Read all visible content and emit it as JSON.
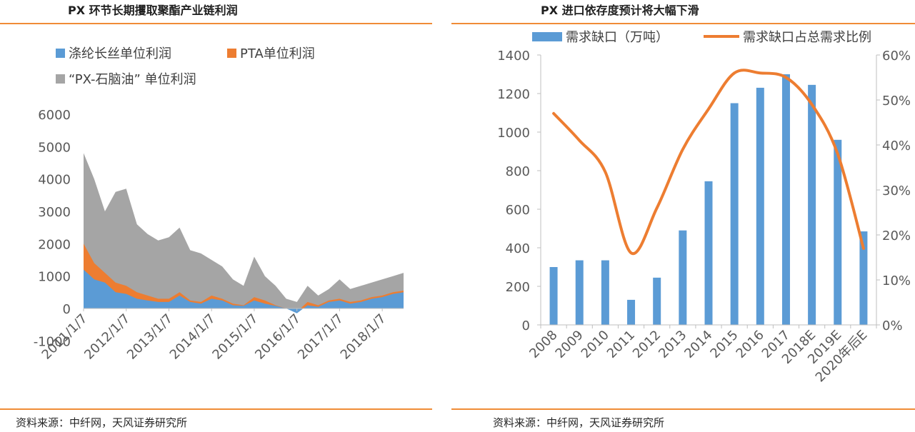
{
  "colors": {
    "blue": "#5b9bd5",
    "orange": "#ed7d31",
    "gray": "#a5a5a5",
    "rule": "#f08c37"
  },
  "left": {
    "title": "PX 环节长期攫取聚酯产业链利润",
    "source": "资料来源：中纤网，天风证券研究所",
    "chart_data": {
      "type": "area",
      "series": [
        {
          "name": "涤纶长丝单位利润",
          "color": "#5b9bd5"
        },
        {
          "name": "PTA单位利润",
          "color": "#ed7d31"
        },
        {
          "name": "“PX-石脑油” 单位利润",
          "color": "#a5a5a5"
        }
      ],
      "x": [
        "2011/1/7",
        "2011/4/7",
        "2011/7/7",
        "2011/10/7",
        "2012/1/7",
        "2012/4/7",
        "2012/7/7",
        "2012/10/7",
        "2013/1/7",
        "2013/4/7",
        "2013/7/7",
        "2013/10/7",
        "2014/1/7",
        "2014/4/7",
        "2014/7/7",
        "2014/10/7",
        "2015/1/7",
        "2015/4/7",
        "2015/7/7",
        "2015/10/7",
        "2016/1/7",
        "2016/4/7",
        "2016/7/7",
        "2016/10/7",
        "2017/1/7",
        "2017/4/7",
        "2017/7/7",
        "2017/10/7",
        "2018/1/7",
        "2018/4/7",
        "2018/7/7"
      ],
      "gray_values": [
        4800,
        4000,
        3000,
        3600,
        3700,
        2600,
        2300,
        2100,
        2200,
        2500,
        1800,
        1700,
        1500,
        1300,
        900,
        700,
        1600,
        1000,
        700,
        300,
        200,
        700,
        400,
        600,
        900,
        600,
        700,
        800,
        900,
        1000,
        1100
      ],
      "orange_values": [
        2000,
        1400,
        1100,
        800,
        700,
        500,
        400,
        300,
        300,
        500,
        250,
        200,
        400,
        300,
        150,
        100,
        350,
        250,
        100,
        0,
        -100,
        200,
        100,
        250,
        300,
        200,
        250,
        350,
        400,
        500,
        550
      ],
      "blue_values": [
        1200,
        900,
        800,
        500,
        450,
        300,
        250,
        200,
        200,
        400,
        200,
        150,
        300,
        250,
        100,
        80,
        250,
        150,
        80,
        0,
        -150,
        100,
        50,
        200,
        250,
        150,
        200,
        300,
        350,
        450,
        500
      ],
      "x_tick_labels": [
        "2011/1/7",
        "2012/1/7",
        "2013/1/7",
        "2014/1/7",
        "2015/1/7",
        "2016/1/7",
        "2017/1/7",
        "2018/1/7"
      ],
      "y_ticks": [
        -1000,
        0,
        1000,
        2000,
        3000,
        4000,
        5000,
        6000
      ],
      "ylim": [
        -1000,
        6000
      ],
      "legend_position": "top-left"
    }
  },
  "right": {
    "title": "PX 进口依存度预计将大幅下滑",
    "source": "资料来源：中纤网，天风证券研究所",
    "chart_data": {
      "type": "bar",
      "categories": [
        "2008",
        "2009",
        "2010",
        "2011",
        "2012",
        "2013",
        "2014",
        "2015",
        "2016",
        "2017",
        "2018E",
        "2019E",
        "2020年后E"
      ],
      "series": [
        {
          "name": "需求缺口（万吨）",
          "type": "bar",
          "axis": "left",
          "color": "#5b9bd5",
          "values": [
            300,
            335,
            335,
            130,
            245,
            490,
            745,
            1150,
            1230,
            1300,
            1245,
            960,
            485
          ]
        },
        {
          "name": "需求缺口占总需求比例",
          "type": "line",
          "axis": "right",
          "color": "#ed7d31",
          "values": [
            47,
            41,
            34,
            16,
            26,
            39,
            48,
            56,
            56,
            55,
            49,
            38,
            17
          ]
        }
      ],
      "y_left_ticks": [
        0,
        200,
        400,
        600,
        800,
        1000,
        1200,
        1400
      ],
      "y_left_lim": [
        0,
        1400
      ],
      "y_right_tick_labels": [
        "0%",
        "10%",
        "20%",
        "30%",
        "40%",
        "50%",
        "60%"
      ],
      "y_right_lim": [
        0,
        60
      ],
      "legend_position": "top"
    }
  }
}
